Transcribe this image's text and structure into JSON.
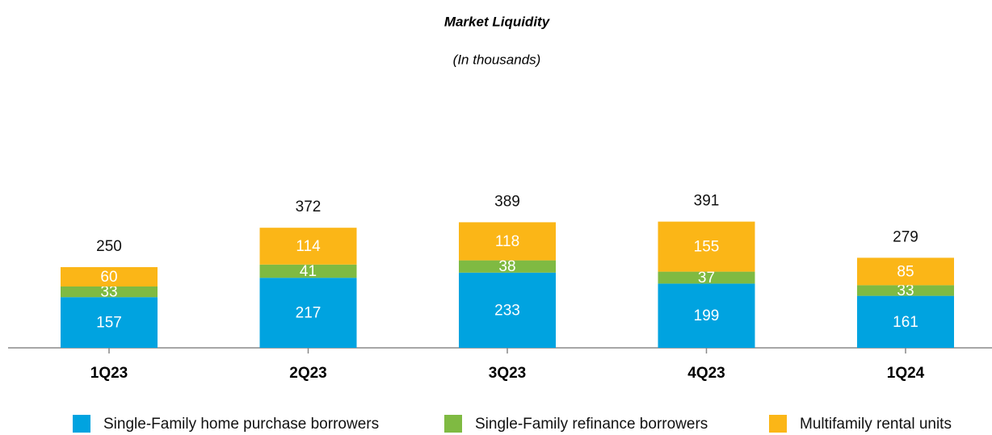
{
  "chart_data": {
    "type": "stacked-bar",
    "title": "Market Liquidity",
    "subtitle": "(In thousands)",
    "categories": [
      "1Q23",
      "2Q23",
      "3Q23",
      "4Q23",
      "1Q24"
    ],
    "series": [
      {
        "name": "Single-Family home purchase borrowers",
        "color": "#00a3e0",
        "values": [
          157,
          217,
          233,
          199,
          161
        ]
      },
      {
        "name": "Single-Family refinance borrowers",
        "color": "#7fba42",
        "values": [
          33,
          41,
          38,
          37,
          33
        ]
      },
      {
        "name": "Multifamily rental units",
        "color": "#fbb617",
        "values": [
          60,
          114,
          118,
          155,
          85
        ]
      }
    ],
    "totals": [
      250,
      372,
      389,
      391,
      279
    ],
    "ylim": [
      0,
      750
    ],
    "legend": "bottom"
  }
}
